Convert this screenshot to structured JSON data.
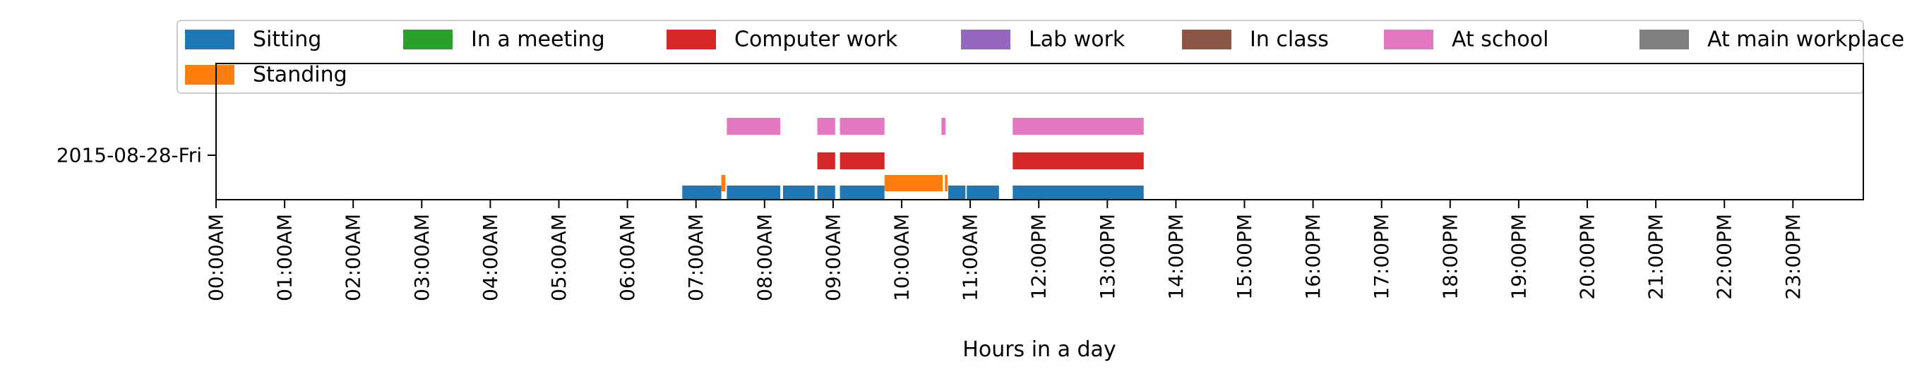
{
  "chart_data": {
    "type": "timeline",
    "xlabel": "Hours in a day",
    "ylabel": "",
    "xlim": [
      0,
      24
    ],
    "categories": [
      "2015-08-28-Fri"
    ],
    "x_tick_labels": [
      "00:00AM",
      "01:00AM",
      "02:00AM",
      "03:00AM",
      "04:00AM",
      "05:00AM",
      "06:00AM",
      "07:00AM",
      "08:00AM",
      "09:00AM",
      "10:00AM",
      "11:00AM",
      "12:00PM",
      "13:00PM",
      "14:00PM",
      "15:00PM",
      "16:00PM",
      "17:00PM",
      "18:00PM",
      "19:00PM",
      "20:00PM",
      "21:00PM",
      "22:00PM",
      "23:00PM"
    ],
    "legend_position": "top",
    "series": [
      {
        "name": "Sitting",
        "color": "#1f77b4",
        "intervals": [
          [
            6.8,
            7.37
          ],
          [
            7.45,
            8.23
          ],
          [
            8.27,
            8.73
          ],
          [
            8.77,
            9.03
          ],
          [
            9.1,
            9.75
          ],
          [
            10.68,
            10.93
          ],
          [
            10.95,
            11.42
          ],
          [
            11.62,
            13.53
          ]
        ]
      },
      {
        "name": "Standing",
        "color": "#ff7f0e",
        "intervals": [
          [
            7.37,
            7.43
          ],
          [
            9.75,
            10.6
          ],
          [
            10.63,
            10.67
          ]
        ]
      },
      {
        "name": "In a meeting",
        "color": "#2ca02c",
        "intervals": []
      },
      {
        "name": "Computer work",
        "color": "#d62728",
        "intervals": [
          [
            8.77,
            9.03
          ],
          [
            9.1,
            9.75
          ],
          [
            11.62,
            13.53
          ]
        ]
      },
      {
        "name": "Lab work",
        "color": "#9467bd",
        "intervals": []
      },
      {
        "name": "In class",
        "color": "#8c564b",
        "intervals": []
      },
      {
        "name": "At school",
        "color": "#e377c2",
        "intervals": [
          [
            7.45,
            8.23
          ],
          [
            8.77,
            9.03
          ],
          [
            9.1,
            9.75
          ],
          [
            10.58,
            10.64
          ],
          [
            11.62,
            13.53
          ]
        ]
      },
      {
        "name": "At main workplace",
        "color": "#7f7f7f",
        "intervals": []
      }
    ]
  }
}
